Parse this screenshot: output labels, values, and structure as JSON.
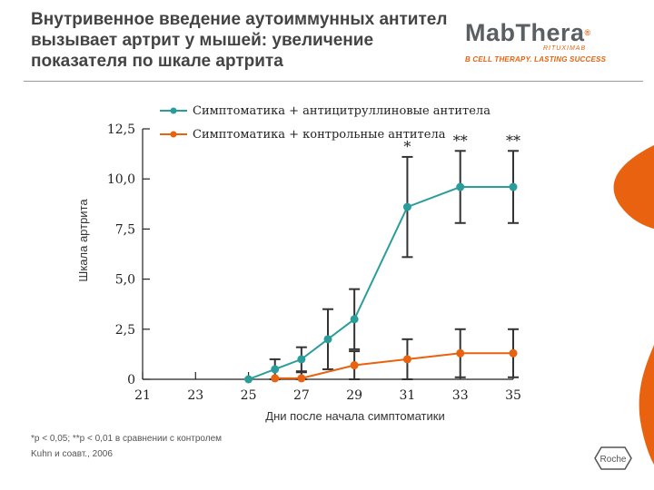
{
  "slide": {
    "title": "Внутривенное введение аутоиммунных антител вызывает артрит у мышей: увеличение показателя по шкале артрита",
    "footnote_line1": "*p < 0,05; **p < 0,01 в сравнении с контролем",
    "footnote_line2": "Kuhn и соавт., 2006"
  },
  "logo": {
    "brand": "MabThera",
    "subbrand": "RITUXIMAB",
    "tagline": "B CELL THERAPY. LASTING SUCCESS",
    "roche": "Roche"
  },
  "colors": {
    "teal": "#2a9d9a",
    "orange": "#e8620f",
    "errorbar": "#333333",
    "axis": "#222222"
  },
  "chart_data": {
    "type": "line",
    "xlabel": "Дни после начала симптоматики",
    "ylabel": "Шкала артрита",
    "x_ticks": [
      21,
      23,
      25,
      27,
      29,
      31,
      33,
      35
    ],
    "y_ticks": [
      "0",
      "2,5",
      "5,0",
      "7,5",
      "10,0",
      "12,5"
    ],
    "y_tick_values": [
      0,
      2.5,
      5.0,
      7.5,
      10.0,
      12.5
    ],
    "xlim": [
      21,
      35
    ],
    "ylim": [
      0,
      12.5
    ],
    "legend_position": "top",
    "series": [
      {
        "name": "Симптоматика + антицитруллиновые антитела",
        "color": "teal",
        "x": [
          25,
          26,
          27,
          28,
          29,
          31,
          33,
          35
        ],
        "y": [
          0,
          0.5,
          1.0,
          2.0,
          3.0,
          8.6,
          9.6,
          9.6
        ],
        "err": [
          0,
          0.5,
          0.6,
          1.5,
          1.5,
          2.5,
          1.8,
          1.8
        ]
      },
      {
        "name": "Симптоматика + контрольные антитела",
        "color": "orange",
        "x": [
          26,
          27,
          29,
          31,
          33,
          35
        ],
        "y": [
          0.05,
          0.05,
          0.7,
          1.0,
          1.3,
          1.3
        ],
        "err": [
          0,
          0.3,
          0.7,
          1.0,
          1.2,
          1.2
        ]
      }
    ],
    "annotations": [
      {
        "text": "*",
        "x": 31
      },
      {
        "text": "**",
        "x": 33
      },
      {
        "text": "**",
        "x": 35
      }
    ]
  }
}
